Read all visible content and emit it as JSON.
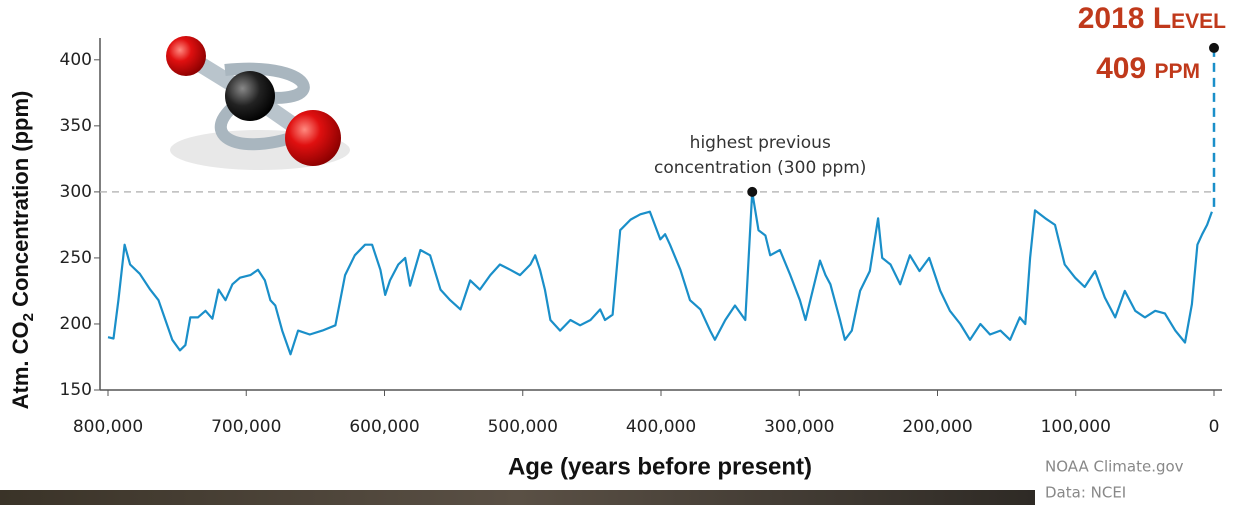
{
  "chart_data": {
    "type": "line",
    "ylabel": [
      "Atm. CO",
      "2",
      " Concentration (ppm)"
    ],
    "xlabel": "Age (years before present)",
    "x": [
      800000,
      796000,
      792500,
      788000,
      784000,
      777000,
      769500,
      763500,
      758500,
      753500,
      748000,
      744000,
      740500,
      735000,
      729500,
      724500,
      720000,
      715000,
      710000,
      704500,
      697000,
      691500,
      686500,
      682500,
      679000,
      674000,
      668000,
      662500,
      654000,
      645000,
      635500,
      628500,
      621500,
      614000,
      609000,
      603000,
      599500,
      596000,
      590000,
      585000,
      581500,
      574000,
      567000,
      559500,
      552500,
      545000,
      538000,
      531000,
      523500,
      516500,
      509000,
      502000,
      494500,
      491000,
      487500,
      484000,
      480000,
      473000,
      465500,
      458500,
      451000,
      444000,
      440500,
      435000,
      429500,
      422000,
      415000,
      408000,
      400500,
      397000,
      393500,
      386000,
      379000,
      371500,
      364500,
      361000,
      353500,
      346500,
      339000,
      334000,
      329500,
      324500,
      321000,
      314000,
      306500,
      299500,
      295500,
      292000,
      285000,
      281000,
      277500,
      270500,
      267000,
      262000,
      256000,
      249000,
      243000,
      240000,
      234000,
      227000,
      220000,
      213000,
      206000,
      198000,
      191000,
      183500,
      176500,
      169000,
      162000,
      154500,
      147500,
      140500,
      136500,
      133000,
      129500,
      122000,
      115000,
      108000,
      100500,
      93500,
      86000,
      79000,
      71500,
      64500,
      57000,
      50000,
      42500,
      35500,
      28000,
      21000,
      16000,
      12000,
      8500,
      5000,
      1500
    ],
    "series": [
      {
        "color": "#1a8fc9",
        "values": [
          190,
          189,
          218,
          260,
          245,
          238,
          226,
          218,
          203,
          188,
          180,
          184,
          205,
          205,
          210,
          204,
          226,
          218,
          230,
          235,
          237,
          241,
          233,
          218,
          214,
          195,
          177,
          195,
          192,
          195,
          199,
          237,
          252,
          260,
          260,
          241,
          222,
          233,
          245,
          250,
          229,
          256,
          252,
          226,
          218,
          211,
          233,
          226,
          237,
          245,
          241,
          237,
          245,
          252,
          241,
          226,
          203,
          195,
          203,
          199,
          203,
          211,
          203,
          207,
          271,
          279,
          283,
          285,
          264,
          268,
          260,
          241,
          218,
          211,
          195,
          188,
          203,
          214,
          203,
          300,
          271,
          267,
          252,
          256,
          237,
          218,
          203,
          218,
          248,
          237,
          230,
          203,
          188,
          195,
          225,
          240,
          280,
          250,
          245,
          230,
          252,
          240,
          250,
          225,
          210,
          200,
          188,
          200,
          192,
          195,
          188,
          205,
          200,
          250,
          286,
          280,
          275,
          245,
          235,
          228,
          240,
          220,
          205,
          225,
          210,
          205,
          210,
          208,
          195,
          186,
          215,
          260,
          268,
          275,
          285
        ]
      }
    ],
    "xlim": [
      800000,
      0
    ],
    "ylim": [
      150,
      415
    ],
    "xticks": [
      {
        "value": 800000,
        "label": "800,000"
      },
      {
        "value": 700000,
        "label": "700,000"
      },
      {
        "value": 600000,
        "label": "600,000"
      },
      {
        "value": 500000,
        "label": "500,000"
      },
      {
        "value": 400000,
        "label": "400,000"
      },
      {
        "value": 300000,
        "label": "300,000"
      },
      {
        "value": 200000,
        "label": "200,000"
      },
      {
        "value": 100000,
        "label": "100,000"
      },
      0
    ],
    "yticks": [
      150,
      200,
      250,
      300,
      350,
      400
    ],
    "reference_y": 300,
    "annotation": {
      "lines": [
        "highest previous",
        "concentration (300 ppm)"
      ],
      "x": 334000,
      "y": 300
    },
    "current": {
      "title": "2018 Level",
      "label": "409 ppm",
      "x": 0,
      "y": 409
    },
    "source": [
      "NOAA Climate.gov",
      "Data: NCEI"
    ]
  }
}
